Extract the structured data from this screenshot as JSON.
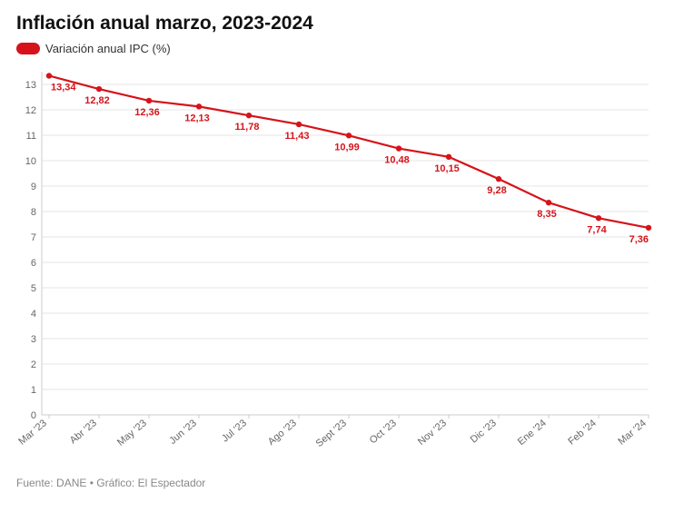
{
  "title": "Inflación anual marzo, 2023-2024",
  "legend": {
    "label": "Variación anual IPC (%)"
  },
  "footer": "Fuente: DANE • Gráfico: El Espectador",
  "chart": {
    "type": "line",
    "series_color": "#d6131a",
    "point_color": "#d6131a",
    "point_label_color": "#d6131a",
    "background_color": "#ffffff",
    "grid_color": "#e6e6e6",
    "axis_color": "#cccccc",
    "tick_label_color": "#666666",
    "line_width": 2.2,
    "marker_radius": 3.2,
    "ylim": [
      0,
      13.5
    ],
    "ytick_step": 1,
    "label_fontsize": 11,
    "xlabel_rotation": -40,
    "categories": [
      "Mar '23",
      "Abr '23",
      "May '23",
      "Jun '23",
      "Jul '23",
      "Ago '23",
      "Sept '23",
      "Oct '23",
      "Nov '23",
      "Dic '23",
      "Ene '24",
      "Feb '24",
      "Mar '24"
    ],
    "values": [
      13.34,
      12.82,
      12.36,
      12.13,
      11.78,
      11.43,
      10.99,
      10.48,
      10.15,
      9.28,
      8.35,
      7.74,
      7.36
    ],
    "value_labels": [
      "13,34",
      "12,82",
      "12,36",
      "12,13",
      "11,78",
      "11,43",
      "10,99",
      "10,48",
      "10,15",
      "9,28",
      "8,35",
      "7,74",
      "7,36"
    ]
  }
}
